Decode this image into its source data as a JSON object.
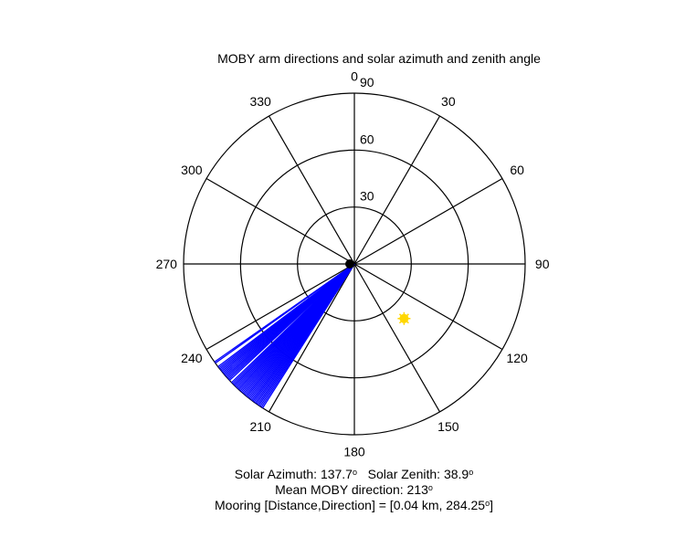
{
  "chart_data": {
    "type": "polar",
    "title": "MOBY arm directions and solar azimuth and zenith angle",
    "angular_axis": {
      "zero_direction": "top",
      "rotation": "clockwise",
      "tick_labels": [
        "0",
        "30",
        "60",
        "90",
        "120",
        "150",
        "180",
        "210",
        "240",
        "270",
        "300",
        "330"
      ],
      "tick_values": [
        0,
        30,
        60,
        90,
        120,
        150,
        180,
        210,
        240,
        270,
        300,
        330
      ]
    },
    "radial_axis": {
      "range": [
        0,
        90
      ],
      "ring_values": [
        30,
        60,
        90
      ],
      "tick_labels": [
        "30",
        "60",
        "90"
      ]
    },
    "grid": true,
    "series": [
      {
        "kind": "arm_directions",
        "color": "#0000ff",
        "radius": 90,
        "directions_deg": [
          212.5,
          213,
          213.5,
          214,
          214.5,
          215,
          215.5,
          216,
          216.5,
          217,
          217.5,
          218,
          218.5,
          219,
          219.5,
          220,
          220.5,
          221,
          221.5,
          222,
          222.5,
          223,
          223.5,
          224,
          224.5,
          225,
          225.5,
          226,
          227,
          227.5,
          228,
          228.5,
          229,
          229.5,
          230,
          230.5,
          231,
          231.5,
          232,
          232.5,
          233,
          234.5,
          235
        ]
      },
      {
        "kind": "sun_position",
        "color": "#ffd700",
        "azimuth_deg": 137.7,
        "zenith_deg": 38.9
      },
      {
        "kind": "center_marker",
        "color": "#000000"
      }
    ]
  },
  "annotations": {
    "solar_azimuth_label": "Solar Azimuth:",
    "solar_azimuth_value": "137.7",
    "solar_zenith_label": "Solar Zenith:",
    "solar_zenith_value": "38.9",
    "degree_symbol": "o",
    "mean_direction_label": "Mean MOBY direction:",
    "mean_direction_value": "213",
    "mooring_label": "Mooring [Distance,Direction] = [0.04 km, 284.25",
    "mooring_close": "]"
  }
}
